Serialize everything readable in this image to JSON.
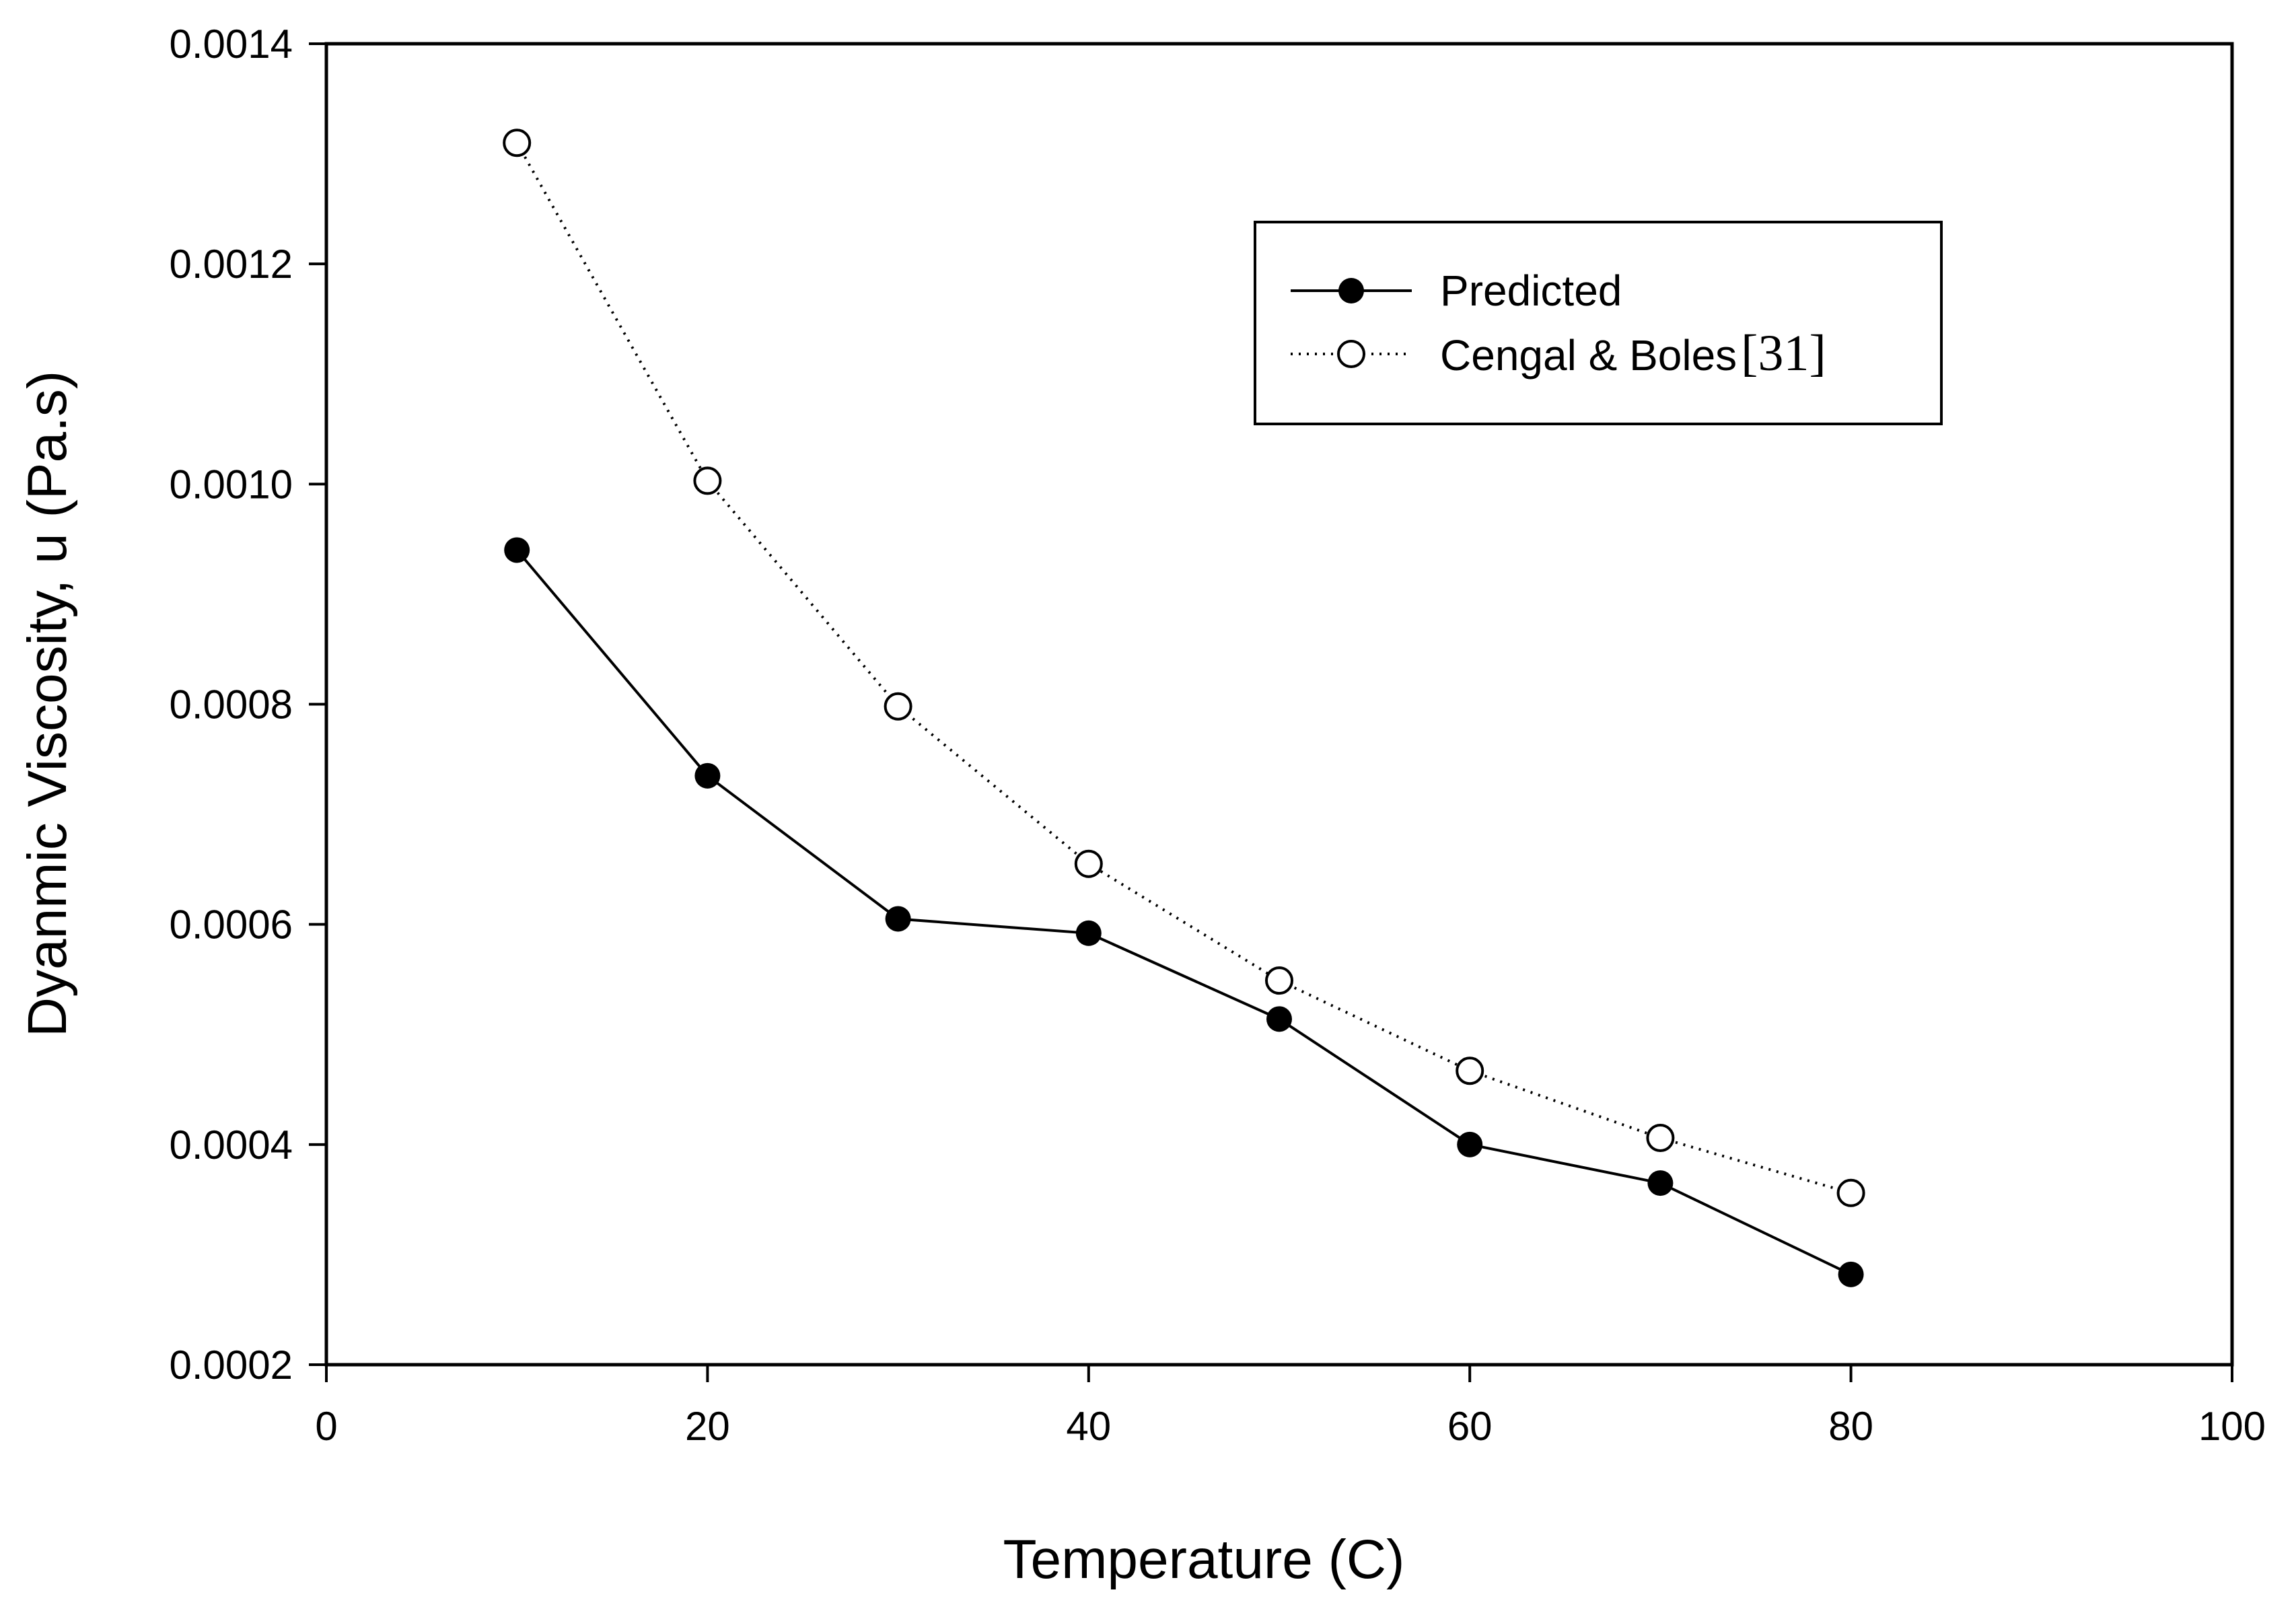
{
  "chart_data": {
    "type": "line",
    "title": "",
    "xlabel": "Temperature (C)",
    "ylabel": "Dyanmic Viscosity, u (Pa.s)",
    "xlim": [
      0,
      100
    ],
    "ylim": [
      0.0002,
      0.0014
    ],
    "x_ticks": [
      0,
      20,
      40,
      60,
      80,
      100
    ],
    "x_tick_labels": [
      "0",
      "20",
      "40",
      "60",
      "80",
      "100"
    ],
    "y_ticks": [
      0.0002,
      0.0004,
      0.0006,
      0.0008,
      0.001,
      0.0012,
      0.0014
    ],
    "y_tick_labels": [
      "0.0002",
      "0.0004",
      "0.0006",
      "0.0008",
      "0.0010",
      "0.0012",
      "0.0014"
    ],
    "grid": false,
    "legend_position": "top-right",
    "series": [
      {
        "name": "Predicted",
        "marker": "filled-circle",
        "line_style": "solid",
        "x": [
          10,
          20,
          30,
          40,
          50,
          60,
          70,
          80
        ],
        "values": [
          0.00094,
          0.000735,
          0.000605,
          0.000592,
          0.000514,
          0.0004,
          0.000365,
          0.000282
        ]
      },
      {
        "name": "Cengal & Boles",
        "name_ref": "[31]",
        "marker": "open-circle",
        "line_style": "dotted",
        "x": [
          10,
          20,
          30,
          40,
          50,
          60,
          70,
          80
        ],
        "values": [
          0.00131,
          0.001003,
          0.000798,
          0.000655,
          0.000549,
          0.000467,
          0.000406,
          0.000356
        ]
      }
    ]
  }
}
